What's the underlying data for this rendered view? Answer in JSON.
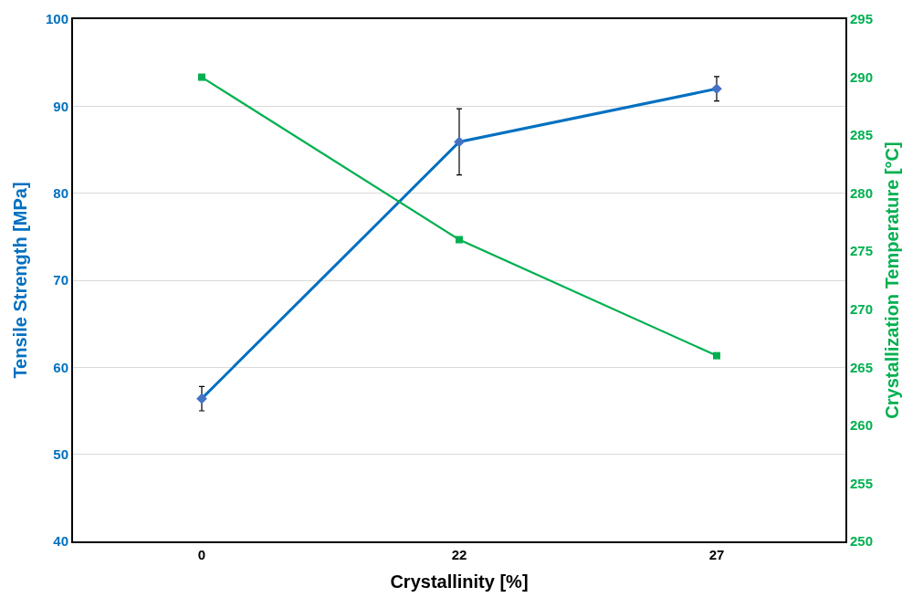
{
  "chart_data": {
    "type": "line",
    "xlabel": "Crystallinity [%]",
    "ylabel": "Tensile Strength [MPa]",
    "y2label": "Crystallization Temperature [°C]",
    "categories": [
      "0",
      "22",
      "27"
    ],
    "series": [
      {
        "color": "#0070c0",
        "marker": "diamond",
        "values": [
          56.4,
          85.9,
          92.0
        ],
        "errors": [
          1.4,
          3.8,
          1.4
        ]
      },
      {
        "color": "#00b050",
        "marker": "square",
        "axis": "y2",
        "values": [
          290,
          276,
          266
        ]
      }
    ],
    "ylim": [
      40,
      100
    ],
    "yticks": [
      40,
      50,
      60,
      70,
      80,
      90,
      100
    ],
    "y2lim": [
      250,
      295
    ],
    "y2ticks": [
      250,
      255,
      260,
      265,
      270,
      275,
      280,
      285,
      290,
      295
    ],
    "grid": "y",
    "legend": false
  }
}
